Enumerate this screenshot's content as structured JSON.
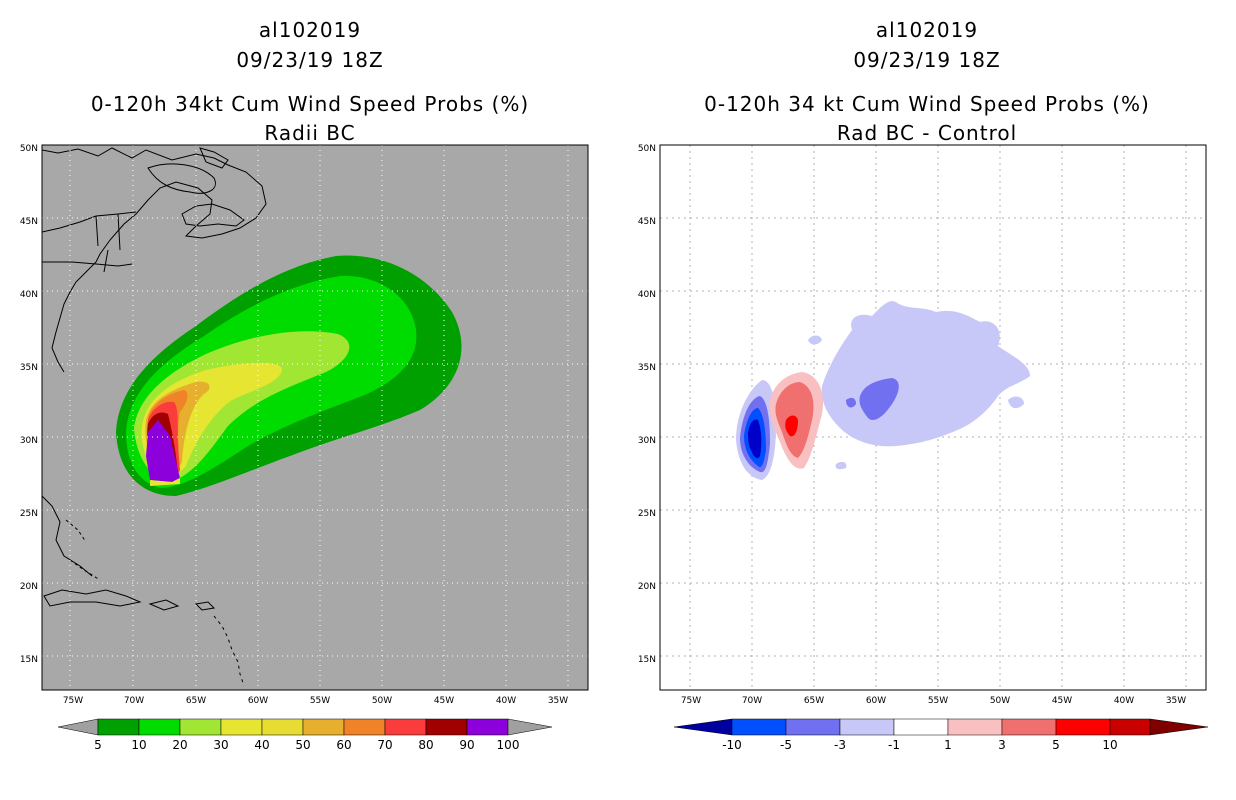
{
  "left_panel": {
    "storm_id": "al102019",
    "datetime": "09/23/19 18Z",
    "title": "0-120h 34kt Cum Wind Speed Probs (%)",
    "subtitle": "Radii BC"
  },
  "right_panel": {
    "storm_id": "al102019",
    "datetime": "09/23/19 18Z",
    "title": "0-120h 34 kt Cum Wind Speed Probs (%)",
    "subtitle": "Rad BC - Control"
  },
  "lat_labels": [
    "50N",
    "45N",
    "40N",
    "35N",
    "30N",
    "25N",
    "20N",
    "15N"
  ],
  "lon_labels": [
    "75W",
    "70W",
    "65W",
    "60W",
    "55W",
    "50W",
    "45W",
    "40W",
    "35W"
  ],
  "left_colorbar": {
    "labels": [
      "5",
      "10",
      "20",
      "30",
      "40",
      "50",
      "60",
      "70",
      "80",
      "90",
      "100"
    ],
    "colors": [
      "#00a000",
      "#00dc00",
      "#a0e632",
      "#e6e632",
      "#e6dc32",
      "#e6af2d",
      "#f08228",
      "#fa3c3c",
      "#a00000",
      "#8c00dc"
    ],
    "end_color": "#a0a0a0"
  },
  "right_colorbar": {
    "labels": [
      "-10",
      "-5",
      "-3",
      "-1",
      "1",
      "3",
      "5",
      "10"
    ],
    "colors": [
      "#0000c8",
      "#0050ff",
      "#7070f0",
      "#c8c8f8",
      "#ffffff",
      "#f8c0c0",
      "#f07070",
      "#ff0000",
      "#c80000"
    ],
    "end_left": "#0000a0",
    "end_right": "#800000"
  },
  "colors": {
    "map_background_left": "#a8a8a8",
    "map_background_right": "#ffffff"
  }
}
